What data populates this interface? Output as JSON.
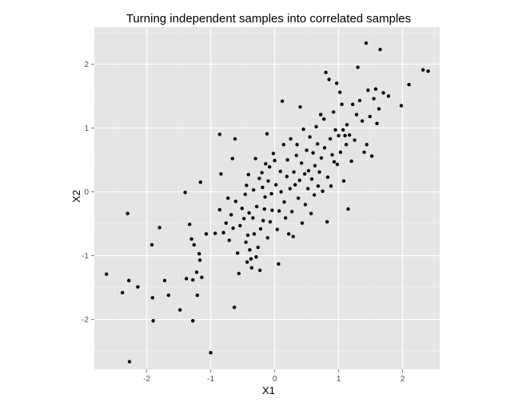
{
  "chart_data": {
    "type": "scatter",
    "title": "Turning independent samples into correlated samples",
    "xlabel": "X1",
    "ylabel": "X2",
    "xlim": [
      -2.82,
      2.58
    ],
    "ylim": [
      -2.78,
      2.58
    ],
    "x_ticks": [
      -2,
      -1,
      0,
      1,
      2
    ],
    "y_ticks": [
      -2,
      -1,
      0,
      1,
      2
    ],
    "x_tick_labels": [
      "-2",
      "-1",
      "0",
      "1",
      "2"
    ],
    "y_tick_labels": [
      "-2",
      "-1",
      "0",
      "1",
      "2"
    ],
    "grid": true,
    "panel_color": "#e5e5e5",
    "grid_color": "#ffffff",
    "point_color": "#000000",
    "points": [
      [
        -2.63,
        -1.29
      ],
      [
        -2.38,
        -1.58
      ],
      [
        -2.3,
        -0.34
      ],
      [
        -2.28,
        -1.39
      ],
      [
        -2.14,
        -1.49
      ],
      [
        -2.27,
        -2.66
      ],
      [
        -1.92,
        -0.83
      ],
      [
        -1.91,
        -1.66
      ],
      [
        -1.9,
        -2.02
      ],
      [
        -1.8,
        -0.56
      ],
      [
        -1.72,
        -1.39
      ],
      [
        -1.66,
        -1.62
      ],
      [
        -1.48,
        -1.85
      ],
      [
        -1.4,
        -0.01
      ],
      [
        -1.38,
        -1.36
      ],
      [
        -1.33,
        -0.51
      ],
      [
        -1.3,
        -0.74
      ],
      [
        -1.28,
        -1.38
      ],
      [
        -1.28,
        -2.02
      ],
      [
        -1.26,
        -0.83
      ],
      [
        -1.22,
        -1.26
      ],
      [
        -1.21,
        -1.62
      ],
      [
        -1.18,
        -0.97
      ],
      [
        -1.17,
        -1.07
      ],
      [
        -1.14,
        -1.34
      ],
      [
        -1.16,
        0.15
      ],
      [
        -1.07,
        -0.66
      ],
      [
        -1.0,
        -2.52
      ],
      [
        -0.93,
        -0.65
      ],
      [
        -0.86,
        -0.28
      ],
      [
        -0.86,
        0.9
      ],
      [
        -0.84,
        0.28
      ],
      [
        -0.8,
        -0.64
      ],
      [
        -0.76,
        -0.49
      ],
      [
        -0.73,
        -0.1
      ],
      [
        -0.71,
        -0.76
      ],
      [
        -0.68,
        -0.36
      ],
      [
        -0.66,
        0.52
      ],
      [
        -0.65,
        -0.57
      ],
      [
        -0.63,
        -1.81
      ],
      [
        -0.62,
        0.83
      ],
      [
        -0.61,
        -0.15
      ],
      [
        -0.58,
        -0.96
      ],
      [
        -0.56,
        -1.28
      ],
      [
        -0.54,
        -0.53
      ],
      [
        -0.51,
        -0.26
      ],
      [
        -0.48,
        -0.42
      ],
      [
        -0.46,
        -0.04
      ],
      [
        -0.45,
        -0.79
      ],
      [
        -0.44,
        0.1
      ],
      [
        -0.43,
        -1.1
      ],
      [
        -0.42,
        -0.68
      ],
      [
        -0.41,
        0.27
      ],
      [
        -0.4,
        -0.33
      ],
      [
        -0.39,
        -0.91
      ],
      [
        -0.37,
        -1.05
      ],
      [
        -0.36,
        -1.19
      ],
      [
        -0.34,
        -0.41
      ],
      [
        -0.33,
        0.03
      ],
      [
        -0.32,
        -0.66
      ],
      [
        -0.3,
        0.52
      ],
      [
        -0.29,
        -1.02
      ],
      [
        -0.28,
        -0.23
      ],
      [
        -0.26,
        -0.87
      ],
      [
        -0.24,
        0.21
      ],
      [
        -0.23,
        -1.23
      ],
      [
        -0.22,
        -0.58
      ],
      [
        -0.2,
        0.3
      ],
      [
        -0.19,
        0.07
      ],
      [
        -0.18,
        -0.45
      ],
      [
        -0.16,
        -0.27
      ],
      [
        -0.15,
        -0.08
      ],
      [
        -0.14,
        0.44
      ],
      [
        -0.12,
        0.91
      ],
      [
        -0.11,
        -0.72
      ],
      [
        -0.1,
        0.17
      ],
      [
        -0.08,
        0.39
      ],
      [
        -0.07,
        -0.47
      ],
      [
        -0.05,
        -0.03
      ],
      [
        -0.04,
        -0.29
      ],
      [
        -0.02,
        0.6
      ],
      [
        0.0,
        0.49
      ],
      [
        0.02,
        0.11
      ],
      [
        0.04,
        -0.59
      ],
      [
        0.06,
        -1.13
      ],
      [
        0.07,
        -0.3
      ],
      [
        0.09,
        0.32
      ],
      [
        0.1,
        0.0
      ],
      [
        0.12,
        1.42
      ],
      [
        0.14,
        0.74
      ],
      [
        0.15,
        -0.16
      ],
      [
        0.17,
        -0.41
      ],
      [
        0.19,
        0.24
      ],
      [
        0.2,
        0.5
      ],
      [
        0.22,
        -0.66
      ],
      [
        0.24,
        0.05
      ],
      [
        0.25,
        0.83
      ],
      [
        0.27,
        -0.31
      ],
      [
        0.29,
        -0.7
      ],
      [
        0.3,
        0.31
      ],
      [
        0.32,
        0.11
      ],
      [
        0.34,
        0.57
      ],
      [
        0.35,
        0.74
      ],
      [
        0.37,
        -0.1
      ],
      [
        0.39,
        0.18
      ],
      [
        0.4,
        1.33
      ],
      [
        0.42,
        0.45
      ],
      [
        0.43,
        -0.49
      ],
      [
        0.45,
        0.98
      ],
      [
        0.47,
        0.28
      ],
      [
        0.48,
        -0.2
      ],
      [
        0.5,
        0.65
      ],
      [
        0.52,
        0.05
      ],
      [
        0.53,
        0.33
      ],
      [
        0.55,
        0.86
      ],
      [
        0.57,
        -0.34
      ],
      [
        0.58,
        0.2
      ],
      [
        0.6,
        0.61
      ],
      [
        0.62,
        -0.05
      ],
      [
        0.63,
        0.41
      ],
      [
        0.65,
        1.02
      ],
      [
        0.67,
        0.75
      ],
      [
        0.68,
        0.09
      ],
      [
        0.7,
        0.31
      ],
      [
        0.72,
        1.21
      ],
      [
        0.73,
        0.53
      ],
      [
        0.75,
        0.01
      ],
      [
        0.77,
        1.14
      ],
      [
        0.78,
        0.69
      ],
      [
        0.8,
        1.87
      ],
      [
        0.82,
        -0.47
      ],
      [
        0.83,
        0.23
      ],
      [
        0.85,
        1.76
      ],
      [
        0.87,
        0.83
      ],
      [
        0.88,
        0.09
      ],
      [
        0.9,
        0.58
      ],
      [
        0.92,
        1.25
      ],
      [
        0.93,
        0.47
      ],
      [
        0.95,
        0.97
      ],
      [
        0.97,
        1.7
      ],
      [
        0.98,
        0.43
      ],
      [
        1.0,
        0.88
      ],
      [
        1.02,
        1.56
      ],
      [
        1.03,
        0.62
      ],
      [
        1.05,
        1.37
      ],
      [
        1.07,
        0.97
      ],
      [
        1.08,
        0.17
      ],
      [
        1.1,
        0.88
      ],
      [
        1.12,
        0.74
      ],
      [
        1.13,
        1.05
      ],
      [
        1.15,
        -0.27
      ],
      [
        1.17,
        0.89
      ],
      [
        1.2,
        0.48
      ],
      [
        1.22,
        1.37
      ],
      [
        1.25,
        0.81
      ],
      [
        1.28,
        1.21
      ],
      [
        1.3,
        1.95
      ],
      [
        1.33,
        1.43
      ],
      [
        1.37,
        1.11
      ],
      [
        1.4,
        0.62
      ],
      [
        1.43,
        2.33
      ],
      [
        1.44,
        0.74
      ],
      [
        1.46,
        1.59
      ],
      [
        1.49,
        1.18
      ],
      [
        1.52,
        0.56
      ],
      [
        1.55,
        1.46
      ],
      [
        1.58,
        1.61
      ],
      [
        1.6,
        1.07
      ],
      [
        1.63,
        1.3
      ],
      [
        1.65,
        2.23
      ],
      [
        1.7,
        1.55
      ],
      [
        1.78,
        1.5
      ],
      [
        1.98,
        1.35
      ],
      [
        2.1,
        1.68
      ],
      [
        2.32,
        1.91
      ],
      [
        2.4,
        1.89
      ]
    ]
  }
}
